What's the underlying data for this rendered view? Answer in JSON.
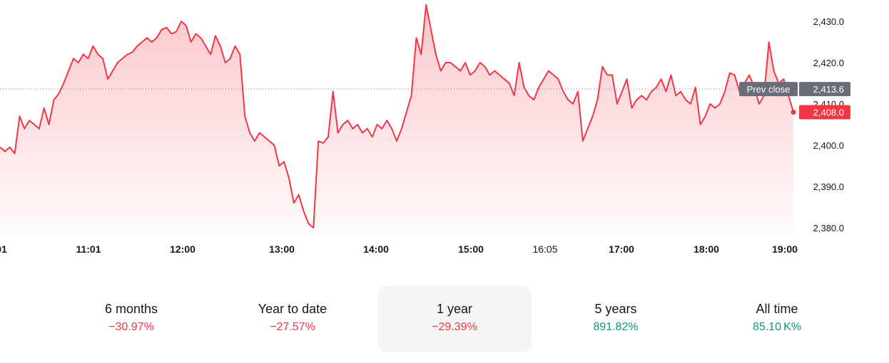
{
  "chart_data": {
    "type": "area",
    "y_axis": {
      "ticks": [
        "2,430.0",
        "2,420.0",
        "2,410.0",
        "2,400.0",
        "2,390.0",
        "2,380.0"
      ],
      "tick_values": [
        2430,
        2420,
        2410,
        2400,
        2390,
        2380
      ],
      "ylim": [
        2378.5,
        2435
      ]
    },
    "x_axis": {
      "ticks": [
        {
          "label": "01",
          "light": false
        },
        {
          "label": "11:01",
          "light": false
        },
        {
          "label": "12:00",
          "light": false
        },
        {
          "label": "13:00",
          "light": false
        },
        {
          "label": "14:00",
          "light": false
        },
        {
          "label": "15:00",
          "light": false
        },
        {
          "label": "16:05",
          "light": true
        },
        {
          "label": "17:00",
          "light": false
        },
        {
          "label": "18:00",
          "light": false
        },
        {
          "label": "19:00",
          "light": false
        }
      ]
    },
    "series": [
      {
        "color": "#f23645",
        "points": [
          [
            10.4,
            2399.5
          ],
          [
            10.45,
            2398.5
          ],
          [
            10.5,
            2399.5
          ],
          [
            10.55,
            2398
          ],
          [
            10.6,
            2407
          ],
          [
            10.65,
            2404
          ],
          [
            10.7,
            2406
          ],
          [
            10.75,
            2405
          ],
          [
            10.8,
            2404
          ],
          [
            10.85,
            2409
          ],
          [
            10.9,
            2405
          ],
          [
            10.95,
            2411
          ],
          [
            11.0,
            2412.5
          ],
          [
            11.05,
            2415
          ],
          [
            11.1,
            2418
          ],
          [
            11.15,
            2421
          ],
          [
            11.2,
            2420
          ],
          [
            11.25,
            2422
          ],
          [
            11.3,
            2421
          ],
          [
            11.35,
            2424
          ],
          [
            11.4,
            2422
          ],
          [
            11.45,
            2421
          ],
          [
            11.5,
            2416
          ],
          [
            11.55,
            2418
          ],
          [
            11.6,
            2420
          ],
          [
            11.65,
            2421
          ],
          [
            11.7,
            2422
          ],
          [
            11.75,
            2422.5
          ],
          [
            11.8,
            2424
          ],
          [
            11.85,
            2425
          ],
          [
            11.9,
            2426
          ],
          [
            11.95,
            2425
          ],
          [
            12.0,
            2426
          ],
          [
            12.05,
            2428
          ],
          [
            12.1,
            2428.5
          ],
          [
            12.15,
            2427
          ],
          [
            12.2,
            2427.5
          ],
          [
            12.25,
            2430
          ],
          [
            12.3,
            2429
          ],
          [
            12.35,
            2425
          ],
          [
            12.4,
            2427
          ],
          [
            12.45,
            2426
          ],
          [
            12.5,
            2424
          ],
          [
            12.55,
            2422
          ],
          [
            12.6,
            2426.5
          ],
          [
            12.65,
            2424
          ],
          [
            12.7,
            2420
          ],
          [
            12.75,
            2421
          ],
          [
            12.8,
            2424
          ],
          [
            12.85,
            2422
          ],
          [
            12.9,
            2407
          ],
          [
            12.95,
            2403
          ],
          [
            13.0,
            2401
          ],
          [
            13.05,
            2403
          ],
          [
            13.1,
            2402
          ],
          [
            13.15,
            2401
          ],
          [
            13.2,
            2400
          ],
          [
            13.25,
            2395
          ],
          [
            13.3,
            2396
          ],
          [
            13.35,
            2392
          ],
          [
            13.4,
            2386
          ],
          [
            13.45,
            2388
          ],
          [
            13.5,
            2384
          ],
          [
            13.55,
            2381
          ],
          [
            13.6,
            2380
          ],
          [
            13.65,
            2401
          ],
          [
            13.7,
            2400.5
          ],
          [
            13.75,
            2402
          ],
          [
            13.8,
            2413
          ],
          [
            13.85,
            2403
          ],
          [
            13.9,
            2405
          ],
          [
            13.95,
            2406
          ],
          [
            14.0,
            2404
          ],
          [
            14.05,
            2405
          ],
          [
            14.1,
            2403
          ],
          [
            14.15,
            2404
          ],
          [
            14.2,
            2402
          ],
          [
            14.25,
            2405
          ],
          [
            14.3,
            2404
          ],
          [
            14.35,
            2406
          ],
          [
            14.4,
            2404
          ],
          [
            14.45,
            2401
          ],
          [
            14.5,
            2404
          ],
          [
            14.55,
            2408
          ],
          [
            14.6,
            2412
          ],
          [
            14.65,
            2426
          ],
          [
            14.7,
            2422
          ],
          [
            14.75,
            2434
          ],
          [
            14.8,
            2428
          ],
          [
            14.85,
            2422
          ],
          [
            14.9,
            2418
          ],
          [
            14.95,
            2420
          ],
          [
            15.0,
            2420
          ],
          [
            15.05,
            2419
          ],
          [
            15.1,
            2418
          ],
          [
            15.15,
            2420
          ],
          [
            15.2,
            2417
          ],
          [
            15.25,
            2418
          ],
          [
            15.3,
            2420
          ],
          [
            15.35,
            2419
          ],
          [
            15.4,
            2417
          ],
          [
            15.45,
            2418
          ],
          [
            15.5,
            2417
          ],
          [
            15.55,
            2416
          ],
          [
            15.6,
            2415
          ],
          [
            15.65,
            2412
          ],
          [
            15.7,
            2420
          ],
          [
            15.75,
            2414
          ],
          [
            15.8,
            2412
          ],
          [
            15.85,
            2411
          ],
          [
            15.9,
            2414
          ],
          [
            15.95,
            2416
          ],
          [
            16.0,
            2418
          ],
          [
            16.05,
            2417
          ],
          [
            16.1,
            2416
          ],
          [
            16.15,
            2413
          ],
          [
            16.2,
            2411
          ],
          [
            16.25,
            2410
          ],
          [
            16.3,
            2413
          ],
          [
            16.35,
            2401
          ],
          [
            16.4,
            2404
          ],
          [
            16.45,
            2407
          ],
          [
            16.5,
            2411
          ],
          [
            16.55,
            2419
          ],
          [
            16.6,
            2417
          ],
          [
            16.65,
            2417
          ],
          [
            16.7,
            2410
          ],
          [
            16.75,
            2413
          ],
          [
            16.8,
            2416
          ],
          [
            16.85,
            2409
          ],
          [
            16.9,
            2411
          ],
          [
            16.95,
            2412
          ],
          [
            17.0,
            2411
          ],
          [
            17.05,
            2413
          ],
          [
            17.1,
            2414
          ],
          [
            17.15,
            2416
          ],
          [
            17.2,
            2413
          ],
          [
            17.25,
            2417
          ],
          [
            17.3,
            2412
          ],
          [
            17.35,
            2413
          ],
          [
            17.4,
            2411
          ],
          [
            17.45,
            2410
          ],
          [
            17.5,
            2414
          ],
          [
            17.55,
            2405
          ],
          [
            17.6,
            2407
          ],
          [
            17.65,
            2410
          ],
          [
            17.7,
            2409
          ],
          [
            17.75,
            2410
          ],
          [
            17.8,
            2413
          ],
          [
            17.85,
            2417.5
          ],
          [
            17.9,
            2417
          ],
          [
            17.95,
            2413
          ],
          [
            18.0,
            2415
          ],
          [
            18.05,
            2417
          ],
          [
            18.1,
            2414
          ],
          [
            18.15,
            2410
          ],
          [
            18.2,
            2412
          ],
          [
            18.25,
            2425
          ],
          [
            18.3,
            2418
          ],
          [
            18.35,
            2415
          ],
          [
            18.4,
            2416
          ],
          [
            18.5,
            2408
          ]
        ]
      }
    ],
    "prev_close": {
      "label": "Prev close",
      "value": "2,413.6",
      "y": 2413.6
    },
    "last_price": {
      "value": "2,408.0",
      "y": 2408.0
    }
  },
  "colors": {
    "line": "#f23645",
    "positive": "#089981",
    "negative": "#f23645",
    "prev_close_badge": "#6a6d78"
  },
  "periods": [
    {
      "label": "6 months",
      "value": "−30.97%",
      "sign": "neg",
      "active": false
    },
    {
      "label": "Year to date",
      "value": "−27.57%",
      "sign": "neg",
      "active": false
    },
    {
      "label": "1 year",
      "value": "−29.39%",
      "sign": "neg",
      "active": true
    },
    {
      "label": "5 years",
      "value": "891.82%",
      "sign": "pos",
      "active": false
    },
    {
      "label": "All time",
      "value": "85.10 K%",
      "sign": "pos",
      "active": false
    }
  ]
}
